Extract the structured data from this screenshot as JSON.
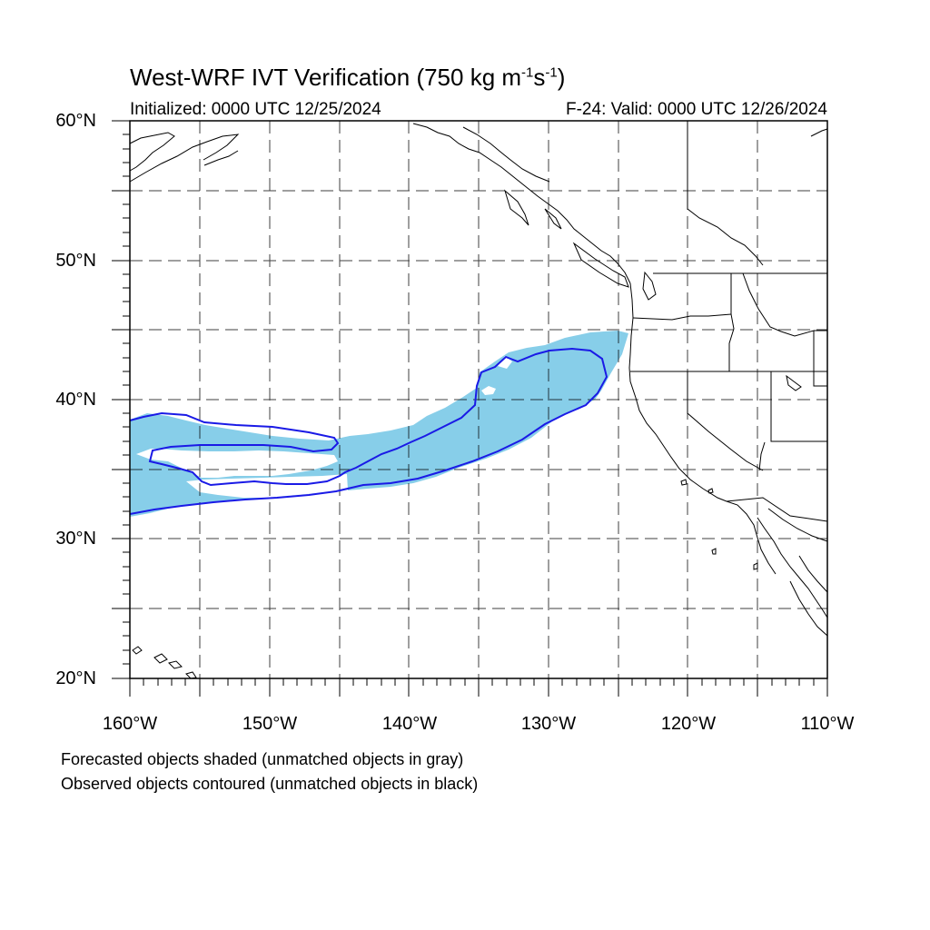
{
  "title": {
    "prefix": "West-WRF IVT Verification (750 kg m",
    "exp1": "-1",
    "mid": "s",
    "exp2": "-1",
    "suffix": ")"
  },
  "initialized": "Initialized: 0000 UTC 12/25/2024",
  "valid": "F-24: Valid: 0000 UTC 12/26/2024",
  "lat_labels": [
    "60°N",
    "50°N",
    "40°N",
    "30°N",
    "20°N"
  ],
  "lon_labels": [
    "160°W",
    "150°W",
    "140°W",
    "130°W",
    "120°W",
    "110°W"
  ],
  "notes": [
    "Forecasted objects shaded (unmatched objects in gray)",
    "Observed objects contoured (unmatched objects in black)"
  ],
  "map_extent": {
    "lon": [
      -160,
      -110
    ],
    "lat": [
      20,
      60
    ]
  },
  "colors": {
    "forecast_fill": "#87cee9",
    "observed_contour": "#1a1ae6",
    "coastline": "#000000",
    "gridline": "#000000"
  }
}
